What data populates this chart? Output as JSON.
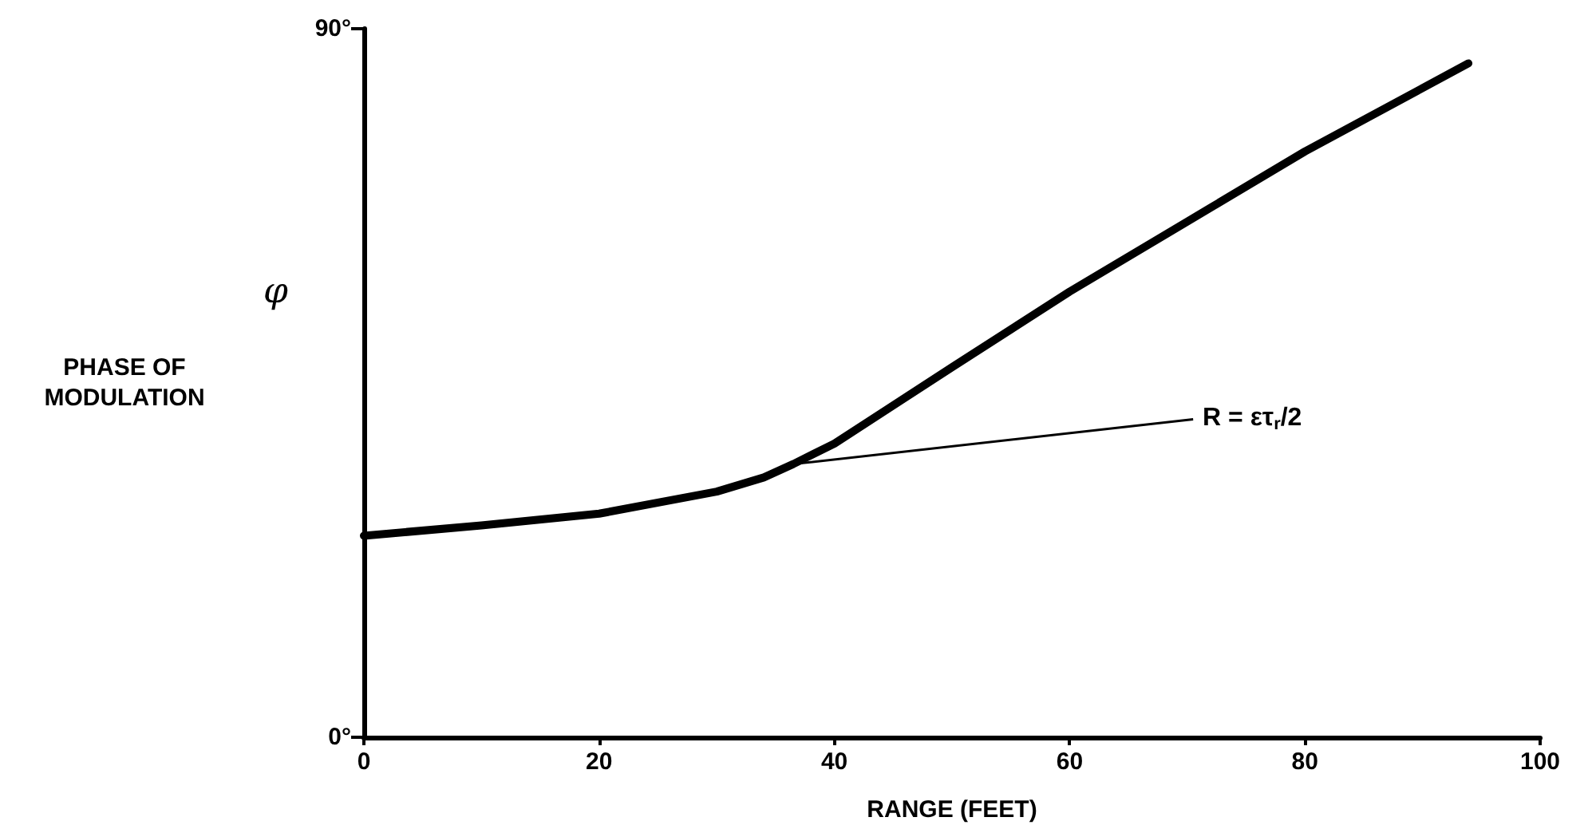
{
  "chart_data": {
    "type": "line",
    "xlabel": "RANGE (FEET)",
    "ylabel": "PHASE OF MODULATION",
    "x": [
      0,
      10,
      20,
      30,
      34,
      36.5,
      40,
      50,
      60,
      70,
      80,
      93.9
    ],
    "series": [
      {
        "color": "#000000",
        "values": [
          25.6,
          26.9,
          28.4,
          31.2,
          33.0,
          34.7,
          37.3,
          47.0,
          56.6,
          65.5,
          74.4,
          85.6
        ]
      }
    ],
    "xlim": [
      0,
      100
    ],
    "xticks": [
      0,
      20,
      40,
      60,
      80,
      100
    ],
    "ylim": [
      0,
      90
    ],
    "yticks": [
      {
        "value": 0,
        "label": "0°"
      },
      {
        "value": 90,
        "label": "90°"
      }
    ],
    "grid": false,
    "marker": "none",
    "line_style": "solid",
    "annotations": [
      "φ",
      {
        "text": "R = ετ$_{r}$/2",
        "x": 36.5,
        "y": 34.7
      }
    ]
  }
}
